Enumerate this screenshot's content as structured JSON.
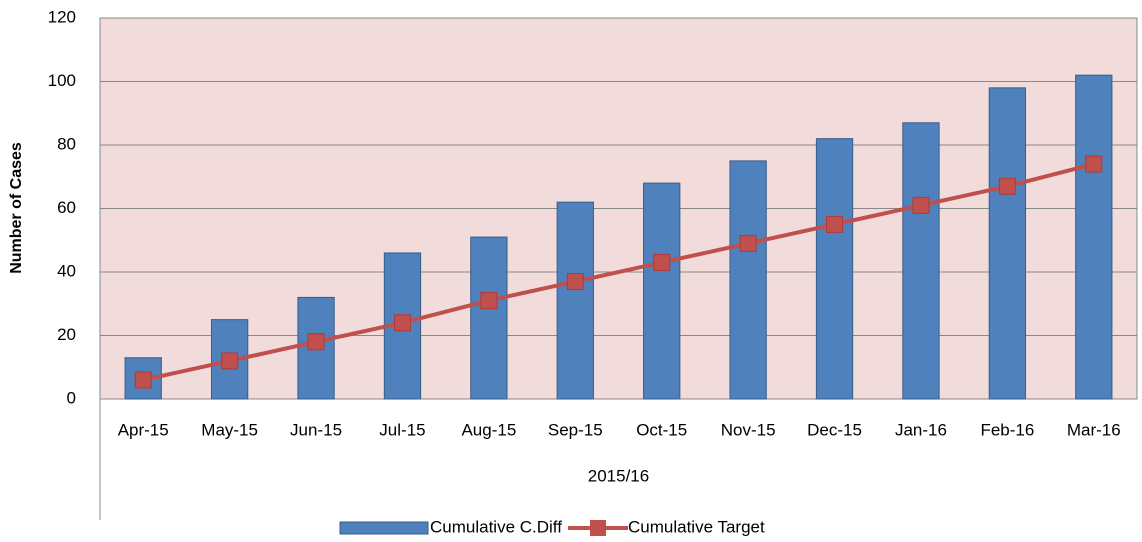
{
  "chart_data": {
    "type": "bar",
    "y_label": "Number of Cases",
    "x_group": "2015/16",
    "categories": [
      "Apr-15",
      "May-15",
      "Jun-15",
      "Jul-15",
      "Aug-15",
      "Sep-15",
      "Oct-15",
      "Nov-15",
      "Dec-15",
      "Jan-16",
      "Feb-16",
      "Mar-16"
    ],
    "series": [
      {
        "name": "Cumulative C.Diff",
        "type": "bar",
        "color": "#4f81bd",
        "values": [
          13,
          25,
          32,
          46,
          51,
          62,
          68,
          75,
          82,
          87,
          98,
          102
        ]
      },
      {
        "name": "Cumulative Target",
        "type": "line",
        "color": "#c0504d",
        "values": [
          6,
          12,
          18,
          24,
          31,
          37,
          43,
          49,
          55,
          61,
          67,
          74
        ]
      }
    ],
    "ylim": [
      0,
      120
    ],
    "yticks": [
      0,
      20,
      40,
      60,
      80,
      100,
      120
    ],
    "grid": true,
    "legend": "bottom"
  }
}
